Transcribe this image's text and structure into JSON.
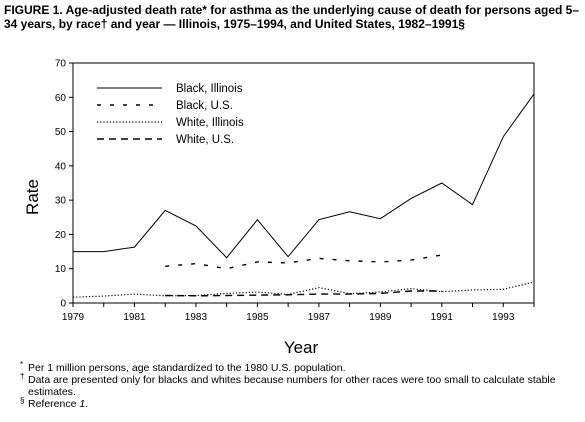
{
  "chart_data": {
    "type": "line",
    "title": "FIGURE 1. Age-adjusted death rate* for asthma as the underlying cause of death for persons aged 5–34 years, by race† and year — Illinois, 1975–1994, and United States, 1982–1991§",
    "xlabel": "Year",
    "ylabel": "Rate",
    "xlim": [
      1979,
      1994
    ],
    "ylim": [
      0,
      70
    ],
    "xticks": [
      1979,
      1981,
      1983,
      1985,
      1987,
      1989,
      1991,
      1993
    ],
    "yticks": [
      0,
      10,
      20,
      30,
      40,
      50,
      60,
      70
    ],
    "legend_position": "top-left",
    "grid": false,
    "series": [
      {
        "name": "Black, Illinois",
        "style": "solid",
        "x": [
          1979,
          1980,
          1981,
          1982,
          1983,
          1984,
          1985,
          1986,
          1987,
          1988,
          1989,
          1990,
          1991,
          1992,
          1993,
          1994
        ],
        "y": [
          15,
          15,
          16.3,
          27,
          22.5,
          13.2,
          24.3,
          13.5,
          24.3,
          26.6,
          24.6,
          30.5,
          35,
          28.7,
          48.5,
          61
        ]
      },
      {
        "name": "Black, U.S.",
        "style": "sparse-dash",
        "x": [
          1982,
          1983,
          1984,
          1985,
          1986,
          1987,
          1988,
          1989,
          1990,
          1991
        ],
        "y": [
          10.7,
          11.5,
          10,
          12,
          11.7,
          13,
          12.3,
          12,
          12.5,
          14
        ]
      },
      {
        "name": "White, Illinois",
        "style": "dotted",
        "x": [
          1979,
          1980,
          1981,
          1982,
          1983,
          1984,
          1985,
          1986,
          1987,
          1988,
          1989,
          1990,
          1991,
          1992,
          1993,
          1994
        ],
        "y": [
          1.7,
          2,
          2.6,
          2.1,
          2.2,
          2.8,
          3.2,
          2.5,
          4.5,
          2.7,
          3.2,
          4.2,
          3.3,
          3.8,
          4,
          6.1
        ]
      },
      {
        "name": "White, U.S.",
        "style": "dashed",
        "x": [
          1982,
          1983,
          1984,
          1985,
          1986,
          1987,
          1988,
          1989,
          1990,
          1991
        ],
        "y": [
          2.2,
          2.1,
          2.2,
          2.3,
          2.4,
          2.6,
          2.6,
          2.8,
          3.5,
          3.5
        ]
      }
    ]
  },
  "footnotes": [
    {
      "mark": "*",
      "text": "Per 1 million persons, age standardized to the 1980 U.S. population."
    },
    {
      "mark": "†",
      "text": "Data are presented only for blacks and whites because numbers for other races were too small to calculate stable estimates."
    },
    {
      "mark": "§",
      "text_prefix": "Reference ",
      "text_ref": "1",
      "text_suffix": "."
    }
  ]
}
